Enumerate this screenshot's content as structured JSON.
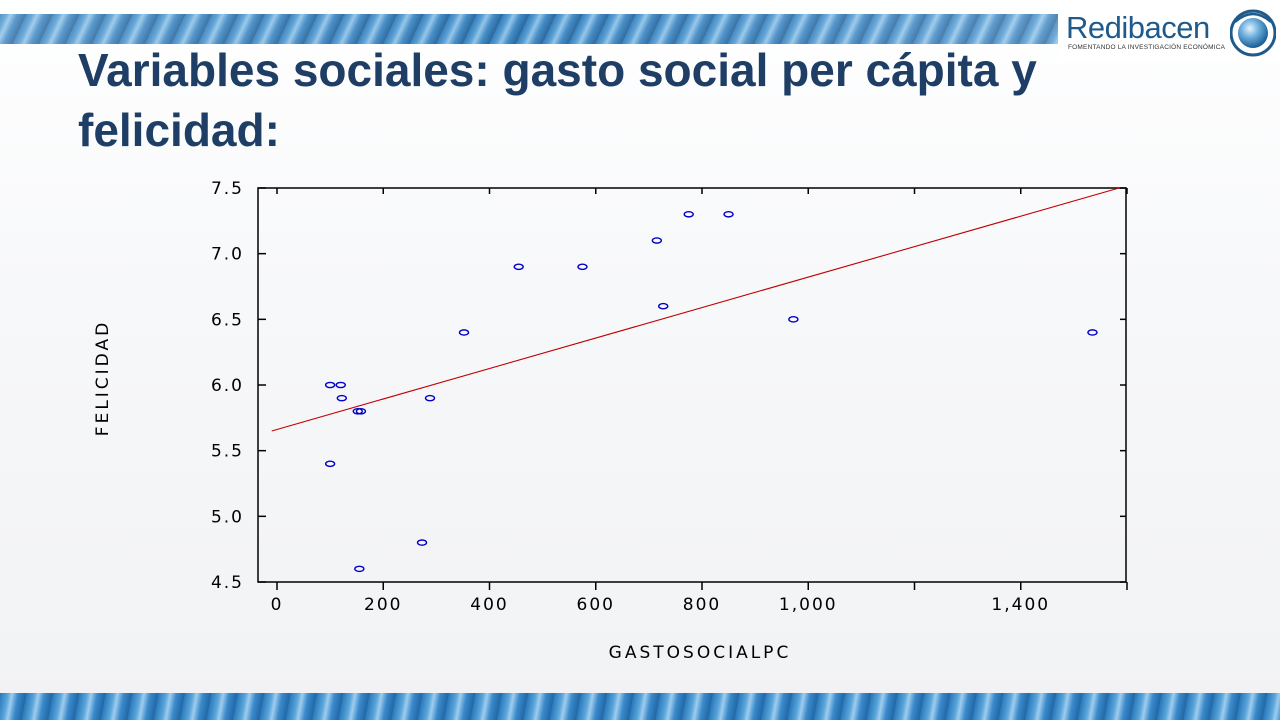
{
  "slide": {
    "title": "Variables sociales: gasto social per cápita y felicidad:"
  },
  "logo": {
    "name": "Redibacen",
    "tagline": "FOMENTANDO LA INVESTIGACIÓN ECONÓMICA",
    "color": "#1f5a8c"
  },
  "chart_data": {
    "type": "scatter",
    "xlabel": "GASTOSOCIALPC",
    "ylabel": "FELICIDAD",
    "xlim": [
      -10,
      1600
    ],
    "ylim": [
      4.5,
      7.5
    ],
    "x_ticks": [
      0,
      200,
      400,
      600,
      800,
      1000,
      1200,
      1400,
      1600
    ],
    "x_tick_labels": [
      "0",
      "200",
      "400",
      "600",
      "800",
      "1,000",
      "",
      "1,400",
      ""
    ],
    "y_ticks": [
      4.5,
      5.0,
      5.5,
      6.0,
      6.5,
      7.0,
      7.5
    ],
    "y_tick_labels": [
      "4.5",
      "5.0",
      "5.5",
      "6.0",
      "6.5",
      "7.0",
      "7.5"
    ],
    "points": [
      {
        "x": 100,
        "y": 5.4
      },
      {
        "x": 100,
        "y": 6.0
      },
      {
        "x": 120,
        "y": 6.0
      },
      {
        "x": 122,
        "y": 5.9
      },
      {
        "x": 152,
        "y": 5.8
      },
      {
        "x": 158,
        "y": 5.8
      },
      {
        "x": 155,
        "y": 4.6
      },
      {
        "x": 273,
        "y": 4.8
      },
      {
        "x": 288,
        "y": 5.9
      },
      {
        "x": 352,
        "y": 6.4
      },
      {
        "x": 455,
        "y": 6.9
      },
      {
        "x": 575,
        "y": 6.9
      },
      {
        "x": 715,
        "y": 7.1
      },
      {
        "x": 727,
        "y": 6.6
      },
      {
        "x": 775,
        "y": 7.3
      },
      {
        "x": 850,
        "y": 7.3
      },
      {
        "x": 972,
        "y": 6.5
      },
      {
        "x": 1535,
        "y": 6.4
      }
    ],
    "fit_line": {
      "x": [
        -10,
        1585
      ],
      "y": [
        5.65,
        7.5
      ]
    },
    "point_color": "#0000c8",
    "line_color": "#c00000",
    "grid": false
  }
}
